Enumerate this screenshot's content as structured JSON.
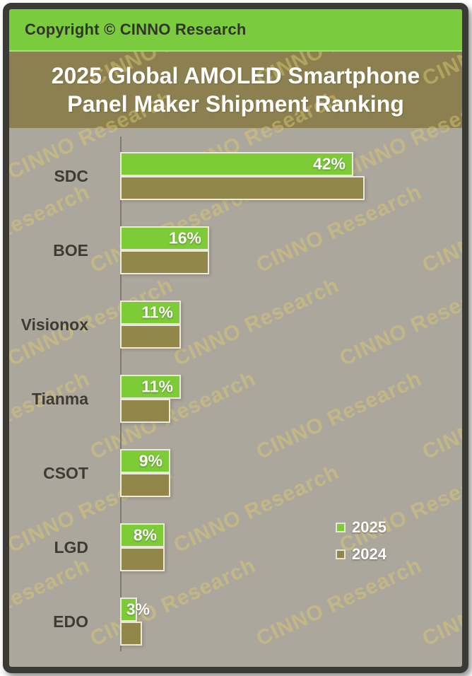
{
  "header": {
    "copyright": "Copyright © CINNO Research"
  },
  "title": {
    "line1": "2025 Global AMOLED Smartphone",
    "line2": "Panel Maker Shipment Ranking"
  },
  "watermark": {
    "text": "CINNO Research"
  },
  "legend": {
    "items": [
      {
        "label": "2025",
        "color": "#7ccb37"
      },
      {
        "label": "2024",
        "color": "#92874b"
      }
    ]
  },
  "chart_data": {
    "type": "bar",
    "orientation": "horizontal",
    "title": "2025 Global AMOLED Smartphone Panel Maker Shipment Ranking",
    "categories": [
      "SDC",
      "BOE",
      "Visionox",
      "Tianma",
      "CSOT",
      "LGD",
      "EDO"
    ],
    "series": [
      {
        "name": "2025",
        "color": "#7ccb37",
        "values": [
          42,
          16,
          11,
          11,
          9,
          8,
          3
        ],
        "data_labels": [
          "42%",
          "16%",
          "11%",
          "11%",
          "9%",
          "8%",
          "3%"
        ]
      },
      {
        "name": "2024",
        "color": "#92874b",
        "values": [
          44,
          16,
          11,
          9,
          9,
          8,
          4
        ],
        "data_labels": [
          "",
          "",
          "",
          "",
          "",
          "",
          ""
        ]
      }
    ],
    "value_unit": "%",
    "xlim": [
      0,
      48
    ],
    "grid": false,
    "legend_position": "inside-right-lower"
  },
  "colors": {
    "header_band": "#7bcb3e",
    "title_band": "#8c8050",
    "chart_background": "#aca79d",
    "frame_border": "#3b3a35",
    "bar_2025": "#7ccb37",
    "bar_2024": "#92874b",
    "bar_outline": "#ede9dd",
    "axis_line": "#7e7b72",
    "watermark_text": "#d8c76f",
    "category_label": "#3d3b33",
    "data_label": "#ffffff",
    "title_text": "#ffffff",
    "copyright_text": "#32352a"
  }
}
